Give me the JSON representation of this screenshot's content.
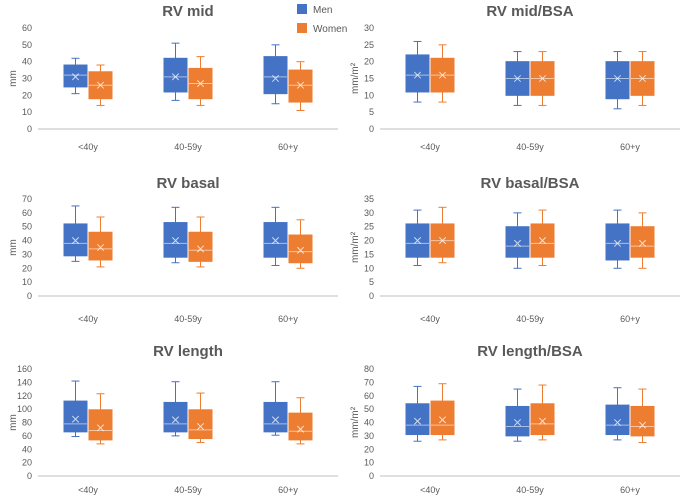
{
  "legend": {
    "placement": "top-center",
    "items": [
      {
        "label": "Men",
        "color": "#4472C4"
      },
      {
        "label": "Women",
        "color": "#ED7D31"
      }
    ]
  },
  "colors": {
    "men": "#4472C4",
    "women": "#ED7D31",
    "axis": "#bfbfbf",
    "text": "#595959"
  },
  "chart_data": [
    {
      "type": "boxplot",
      "title": "RV mid",
      "ylabel": "mm",
      "ylim": [
        0,
        60
      ],
      "yticks": [
        0,
        10,
        20,
        30,
        40,
        50,
        60
      ],
      "categories": [
        "<40y",
        "40-59y",
        "60+y"
      ],
      "series": [
        {
          "name": "Men",
          "boxes": [
            {
              "min": 21,
              "q1": 25,
              "median": 32,
              "q3": 38,
              "max": 42,
              "mean": 31
            },
            {
              "min": 17,
              "q1": 22,
              "median": 31,
              "q3": 42,
              "max": 51,
              "mean": 31
            },
            {
              "min": 15,
              "q1": 21,
              "median": 31,
              "q3": 43,
              "max": 50,
              "mean": 30
            }
          ]
        },
        {
          "name": "Women",
          "boxes": [
            {
              "min": 14,
              "q1": 18,
              "median": 26,
              "q3": 34,
              "max": 38,
              "mean": 26
            },
            {
              "min": 14,
              "q1": 18,
              "median": 27,
              "q3": 36,
              "max": 43,
              "mean": 27
            },
            {
              "min": 11,
              "q1": 16,
              "median": 26,
              "q3": 35,
              "max": 40,
              "mean": 26
            }
          ]
        }
      ]
    },
    {
      "type": "boxplot",
      "title": "RV mid/BSA",
      "ylabel": "mm/m²",
      "ylim": [
        0,
        30
      ],
      "yticks": [
        0,
        5,
        10,
        15,
        20,
        25,
        30
      ],
      "categories": [
        "<40y",
        "40-59y",
        "60+y"
      ],
      "series": [
        {
          "name": "Men",
          "boxes": [
            {
              "min": 8,
              "q1": 11,
              "median": 16,
              "q3": 22,
              "max": 26,
              "mean": 16
            },
            {
              "min": 7,
              "q1": 10,
              "median": 15,
              "q3": 20,
              "max": 23,
              "mean": 15
            },
            {
              "min": 6,
              "q1": 9,
              "median": 15,
              "q3": 20,
              "max": 23,
              "mean": 15
            }
          ]
        },
        {
          "name": "Women",
          "boxes": [
            {
              "min": 8,
              "q1": 11,
              "median": 16,
              "q3": 21,
              "max": 25,
              "mean": 16
            },
            {
              "min": 7,
              "q1": 10,
              "median": 15,
              "q3": 20,
              "max": 23,
              "mean": 15
            },
            {
              "min": 7,
              "q1": 10,
              "median": 15,
              "q3": 20,
              "max": 23,
              "mean": 15
            }
          ]
        }
      ]
    },
    {
      "type": "boxplot",
      "title": "RV basal",
      "ylabel": "mm",
      "ylim": [
        0,
        70
      ],
      "yticks": [
        0,
        10,
        20,
        30,
        40,
        50,
        60,
        70
      ],
      "categories": [
        "<40y",
        "40-59y",
        "60+y"
      ],
      "series": [
        {
          "name": "Men",
          "boxes": [
            {
              "min": 25,
              "q1": 29,
              "median": 38,
              "q3": 52,
              "max": 65,
              "mean": 40
            },
            {
              "min": 24,
              "q1": 28,
              "median": 38,
              "q3": 53,
              "max": 64,
              "mean": 40
            },
            {
              "min": 22,
              "q1": 28,
              "median": 38,
              "q3": 53,
              "max": 64,
              "mean": 40
            }
          ]
        },
        {
          "name": "Women",
          "boxes": [
            {
              "min": 21,
              "q1": 26,
              "median": 34,
              "q3": 46,
              "max": 57,
              "mean": 35
            },
            {
              "min": 21,
              "q1": 25,
              "median": 33,
              "q3": 46,
              "max": 57,
              "mean": 34
            },
            {
              "min": 20,
              "q1": 24,
              "median": 32,
              "q3": 44,
              "max": 55,
              "mean": 33
            }
          ]
        }
      ]
    },
    {
      "type": "boxplot",
      "title": "RV basal/BSA",
      "ylabel": "mm/m²",
      "ylim": [
        0,
        35
      ],
      "yticks": [
        0,
        5,
        10,
        15,
        20,
        25,
        30,
        35
      ],
      "categories": [
        "<40y",
        "40-59y",
        "60+y"
      ],
      "series": [
        {
          "name": "Men",
          "boxes": [
            {
              "min": 11,
              "q1": 14,
              "median": 19,
              "q3": 26,
              "max": 31,
              "mean": 20
            },
            {
              "min": 10,
              "q1": 14,
              "median": 18,
              "q3": 25,
              "max": 30,
              "mean": 19
            },
            {
              "min": 10,
              "q1": 13,
              "median": 19,
              "q3": 26,
              "max": 31,
              "mean": 19
            }
          ]
        },
        {
          "name": "Women",
          "boxes": [
            {
              "min": 12,
              "q1": 14,
              "median": 20,
              "q3": 26,
              "max": 32,
              "mean": 20
            },
            {
              "min": 11,
              "q1": 14,
              "median": 19,
              "q3": 26,
              "max": 31,
              "mean": 20
            },
            {
              "min": 10,
              "q1": 14,
              "median": 18,
              "q3": 25,
              "max": 30,
              "mean": 19
            }
          ]
        }
      ]
    },
    {
      "type": "boxplot",
      "title": "RV length",
      "ylabel": "mm",
      "ylim": [
        0,
        160
      ],
      "yticks": [
        0,
        20,
        40,
        60,
        80,
        100,
        120,
        140,
        160
      ],
      "categories": [
        "<40y",
        "40-59y",
        "60+y"
      ],
      "series": [
        {
          "name": "Men",
          "boxes": [
            {
              "min": 59,
              "q1": 66,
              "median": 78,
              "q3": 112,
              "max": 142,
              "mean": 85
            },
            {
              "min": 60,
              "q1": 66,
              "median": 78,
              "q3": 110,
              "max": 141,
              "mean": 84
            },
            {
              "min": 61,
              "q1": 66,
              "median": 78,
              "q3": 110,
              "max": 141,
              "mean": 84
            }
          ]
        },
        {
          "name": "Women",
          "boxes": [
            {
              "min": 48,
              "q1": 54,
              "median": 68,
              "q3": 99,
              "max": 123,
              "mean": 72
            },
            {
              "min": 50,
              "q1": 56,
              "median": 69,
              "q3": 99,
              "max": 124,
              "mean": 74
            },
            {
              "min": 48,
              "q1": 54,
              "median": 67,
              "q3": 94,
              "max": 117,
              "mean": 70
            }
          ]
        }
      ]
    },
    {
      "type": "boxplot",
      "title": "RV length/BSA",
      "ylabel": "mm/m²",
      "ylim": [
        0,
        80
      ],
      "yticks": [
        0,
        10,
        20,
        30,
        40,
        50,
        60,
        70,
        80
      ],
      "categories": [
        "<40y",
        "40-59y",
        "60+y"
      ],
      "series": [
        {
          "name": "Men",
          "boxes": [
            {
              "min": 26,
              "q1": 31,
              "median": 38,
              "q3": 54,
              "max": 67,
              "mean": 41
            },
            {
              "min": 26,
              "q1": 30,
              "median": 37,
              "q3": 52,
              "max": 65,
              "mean": 40
            },
            {
              "min": 27,
              "q1": 31,
              "median": 38,
              "q3": 53,
              "max": 66,
              "mean": 40
            }
          ]
        },
        {
          "name": "Women",
          "boxes": [
            {
              "min": 27,
              "q1": 31,
              "median": 38,
              "q3": 56,
              "max": 69,
              "mean": 42
            },
            {
              "min": 27,
              "q1": 31,
              "median": 39,
              "q3": 54,
              "max": 68,
              "mean": 41
            },
            {
              "min": 25,
              "q1": 30,
              "median": 37,
              "q3": 52,
              "max": 65,
              "mean": 38
            }
          ]
        }
      ]
    }
  ]
}
